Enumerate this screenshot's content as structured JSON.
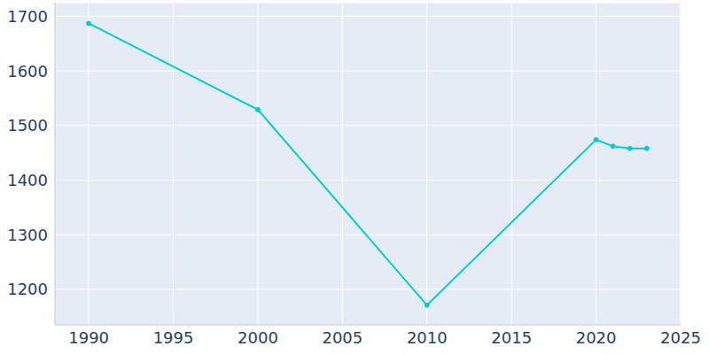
{
  "chart_data": {
    "type": "line",
    "x": [
      1990,
      2000,
      2010,
      2020,
      2021,
      2022,
      2023
    ],
    "values": [
      1687,
      1529,
      1171,
      1474,
      1462,
      1458,
      1458
    ],
    "color": "#00cdd1",
    "xlim": [
      1988,
      2025
    ],
    "xticks": [
      1990,
      1995,
      2000,
      2005,
      2010,
      2015,
      2020,
      2025
    ],
    "ylim": [
      1135,
      1725
    ],
    "yticks": [
      1200,
      1300,
      1400,
      1500,
      1600,
      1700
    ],
    "grid": true,
    "marker": "circle"
  }
}
